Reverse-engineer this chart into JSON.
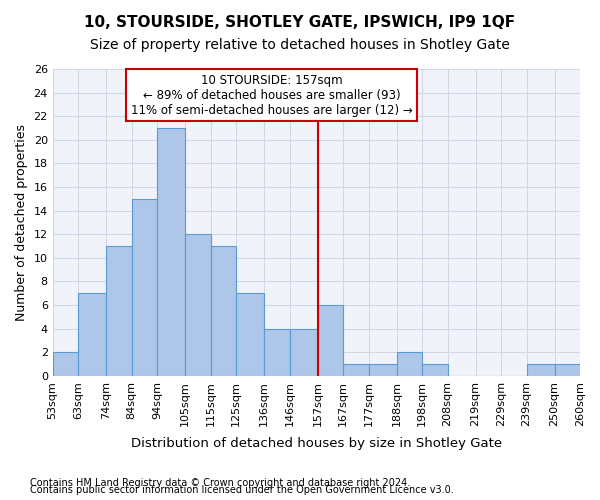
{
  "title": "10, STOURSIDE, SHOTLEY GATE, IPSWICH, IP9 1QF",
  "subtitle": "Size of property relative to detached houses in Shotley Gate",
  "xlabel": "Distribution of detached houses by size in Shotley Gate",
  "ylabel": "Number of detached properties",
  "footnote1": "Contains HM Land Registry data © Crown copyright and database right 2024.",
  "footnote2": "Contains public sector information licensed under the Open Government Licence v3.0.",
  "annotation_title": "10 STOURSIDE: 157sqm",
  "annotation_line1": "← 89% of detached houses are smaller (93)",
  "annotation_line2": "11% of semi-detached houses are larger (12) →",
  "marker_value": 157,
  "bins": [
    53,
    63,
    74,
    84,
    94,
    105,
    115,
    125,
    136,
    146,
    157,
    167,
    177,
    188,
    198,
    208,
    219,
    229,
    239,
    250,
    260
  ],
  "counts": [
    2,
    7,
    11,
    15,
    21,
    12,
    11,
    7,
    4,
    4,
    6,
    1,
    1,
    2,
    1,
    0,
    0,
    0,
    1,
    1
  ],
  "bar_color": "#aec6e8",
  "bar_edge_color": "#5b9bd5",
  "marker_color": "#cc0000",
  "grid_color": "#d0d8e8",
  "bg_color": "#f0f4fa",
  "ylim": [
    0,
    26
  ],
  "yticks": [
    0,
    2,
    4,
    6,
    8,
    10,
    12,
    14,
    16,
    18,
    20,
    22,
    24,
    26
  ],
  "title_fontsize": 11,
  "subtitle_fontsize": 10,
  "xlabel_fontsize": 9.5,
  "ylabel_fontsize": 9,
  "tick_fontsize": 8,
  "annot_fontsize": 8.5,
  "footnote_fontsize": 7
}
